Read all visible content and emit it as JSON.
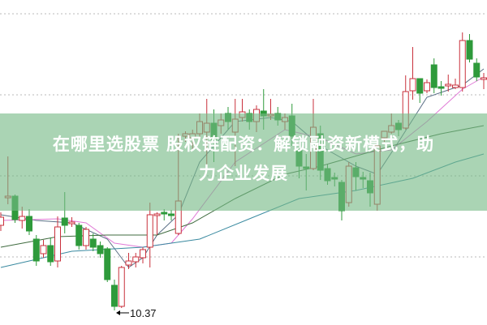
{
  "headline": {
    "line1": "在哪里选股票 股权链配资：解锁融资新模式，助",
    "line2": "力企业发展"
  },
  "colors": {
    "up": "#c9303c",
    "down": "#2e9a3b",
    "grid": "#b8b8b8",
    "banner": "#76ba86"
  },
  "chart_data": {
    "type": "candlestick",
    "title": "",
    "ylim": [
      10.2,
      14.2
    ],
    "gridlines": [
      14.03,
      13.03,
      12.03,
      11.03
    ],
    "grid": true,
    "annotations": [
      {
        "label": "10.37",
        "candle_index": 16,
        "value": 10.37
      }
    ],
    "candles_ohlc": [
      [
        11.42,
        11.58,
        11.35,
        11.52
      ],
      [
        11.76,
        12.27,
        11.68,
        11.78
      ],
      [
        11.78,
        11.8,
        11.45,
        11.49
      ],
      [
        11.48,
        11.65,
        11.38,
        11.53
      ],
      [
        11.53,
        11.62,
        11.3,
        11.35
      ],
      [
        11.25,
        11.3,
        10.92,
        10.98
      ],
      [
        11.07,
        11.24,
        11.02,
        11.17
      ],
      [
        11.17,
        11.27,
        10.92,
        10.97
      ],
      [
        10.98,
        11.53,
        10.9,
        11.4
      ],
      [
        11.51,
        11.83,
        11.32,
        11.42
      ],
      [
        11.44,
        11.52,
        11.4,
        11.46
      ],
      [
        11.42,
        11.45,
        11.12,
        11.17
      ],
      [
        11.17,
        11.4,
        11.12,
        11.37
      ],
      [
        11.25,
        11.32,
        11.1,
        11.15
      ],
      [
        11.17,
        11.22,
        11.02,
        11.07
      ],
      [
        11.13,
        11.15,
        10.72,
        10.75
      ],
      [
        10.68,
        10.75,
        10.37,
        10.42
      ],
      [
        10.42,
        10.92,
        10.4,
        10.9
      ],
      [
        10.93,
        11.08,
        10.88,
        10.98
      ],
      [
        10.97,
        11.08,
        10.9,
        11.03
      ],
      [
        11.02,
        11.15,
        10.95,
        11.12
      ],
      [
        11.15,
        11.7,
        10.9,
        11.55
      ],
      [
        11.54,
        11.58,
        11.3,
        11.56
      ],
      [
        11.58,
        11.62,
        11.48,
        11.56
      ],
      [
        11.56,
        11.61,
        11.48,
        11.54
      ],
      [
        11.32,
        12.55,
        11.3,
        11.72
      ],
      [
        12.52,
        12.58,
        12.45,
        12.55
      ],
      [
        12.5,
        12.6,
        12.35,
        12.55
      ],
      [
        12.55,
        12.8,
        12.5,
        12.7
      ],
      [
        12.57,
        12.98,
        12.15,
        12.68
      ],
      [
        12.68,
        12.85,
        12.2,
        12.48
      ],
      [
        12.65,
        12.8,
        12.55,
        12.72
      ],
      [
        12.8,
        12.88,
        12.6,
        12.7
      ],
      [
        12.57,
        12.98,
        12.15,
        12.73
      ],
      [
        12.75,
        12.98,
        12.7,
        12.82
      ],
      [
        12.8,
        12.85,
        12.6,
        12.7
      ],
      [
        12.7,
        12.9,
        12.57,
        12.85
      ],
      [
        12.83,
        13.1,
        12.6,
        12.77
      ],
      [
        12.77,
        12.98,
        12.72,
        12.79
      ],
      [
        12.8,
        12.88,
        12.65,
        12.72
      ],
      [
        12.7,
        12.8,
        12.6,
        12.75
      ],
      [
        12.77,
        12.92,
        12.4,
        12.52
      ],
      [
        12.35,
        12.45,
        12.0,
        12.15
      ],
      [
        12.14,
        12.3,
        11.85,
        12.12
      ],
      [
        12.12,
        12.98,
        12.1,
        12.63
      ],
      [
        12.55,
        12.65,
        11.98,
        12.1
      ],
      [
        12.12,
        12.17,
        11.92,
        11.97
      ],
      [
        12.01,
        12.07,
        11.9,
        11.99
      ],
      [
        11.95,
        11.98,
        11.48,
        11.6
      ],
      [
        11.7,
        12.2,
        11.65,
        12.15
      ],
      [
        12.13,
        12.2,
        11.85,
        12.02
      ],
      [
        12.01,
        12.08,
        11.88,
        11.99
      ],
      [
        11.97,
        12.07,
        11.65,
        11.82
      ],
      [
        11.68,
        12.45,
        11.6,
        12.4
      ],
      [
        12.5,
        12.58,
        12.45,
        12.58
      ],
      [
        12.57,
        12.8,
        12.55,
        12.65
      ],
      [
        12.68,
        12.72,
        12.52,
        12.6
      ],
      [
        12.62,
        13.27,
        12.6,
        13.07
      ],
      [
        13.08,
        13.62,
        12.97,
        13.23
      ],
      [
        13.23,
        13.23,
        12.93,
        13.05
      ],
      [
        13.08,
        13.22,
        13.05,
        13.18
      ],
      [
        13.4,
        13.48,
        13.05,
        13.12
      ],
      [
        13.13,
        13.2,
        13.02,
        13.11
      ],
      [
        13.14,
        13.28,
        13.07,
        13.16
      ],
      [
        13.12,
        13.23,
        13.1,
        13.15
      ],
      [
        13.12,
        13.8,
        13.07,
        13.7
      ],
      [
        13.7,
        13.78,
        13.43,
        13.47
      ],
      [
        13.42,
        13.48,
        13.2,
        13.25
      ],
      [
        13.22,
        13.3,
        13.1,
        13.24
      ]
    ],
    "moving_averages": [
      {
        "color": "#5a6f86",
        "points": [
          [
            0,
            11.55
          ],
          [
            5,
            11.48
          ],
          [
            10,
            11.45
          ],
          [
            15,
            11.25
          ],
          [
            18,
            10.9
          ],
          [
            20,
            11.02
          ],
          [
            22,
            11.3
          ],
          [
            25,
            11.55
          ],
          [
            28,
            12.2
          ],
          [
            33,
            12.7
          ],
          [
            38,
            12.75
          ],
          [
            41,
            12.7
          ],
          [
            45,
            12.4
          ],
          [
            50,
            12.15
          ],
          [
            53,
            12.05
          ],
          [
            56,
            12.45
          ],
          [
            60,
            13.0
          ],
          [
            65,
            13.15
          ],
          [
            68,
            13.35
          ]
        ]
      },
      {
        "color": "#e07ad6",
        "points": [
          [
            0,
            11.48
          ],
          [
            8,
            11.5
          ],
          [
            12,
            11.45
          ],
          [
            16,
            11.2
          ],
          [
            20,
            11.15
          ],
          [
            24,
            11.2
          ],
          [
            27,
            11.5
          ],
          [
            33,
            12.2
          ],
          [
            40,
            12.6
          ],
          [
            45,
            12.5
          ],
          [
            50,
            12.3
          ],
          [
            55,
            12.35
          ],
          [
            60,
            12.7
          ],
          [
            65,
            13.1
          ],
          [
            68,
            13.25
          ]
        ]
      },
      {
        "color": "#3f6b3f",
        "points": [
          [
            0,
            11.15
          ],
          [
            8,
            11.28
          ],
          [
            15,
            11.3
          ],
          [
            22,
            11.3
          ],
          [
            27,
            11.45
          ],
          [
            33,
            11.75
          ],
          [
            40,
            12.05
          ],
          [
            45,
            12.15
          ],
          [
            55,
            12.4
          ],
          [
            62,
            12.55
          ],
          [
            68,
            12.65
          ]
        ]
      },
      {
        "color": "#3a8aa0",
        "points": [
          [
            0,
            10.9
          ],
          [
            10,
            11.1
          ],
          [
            20,
            11.15
          ],
          [
            28,
            11.25
          ],
          [
            35,
            11.5
          ],
          [
            42,
            11.75
          ],
          [
            50,
            11.85
          ],
          [
            58,
            12.0
          ],
          [
            64,
            12.2
          ],
          [
            68,
            12.3
          ]
        ]
      }
    ]
  }
}
